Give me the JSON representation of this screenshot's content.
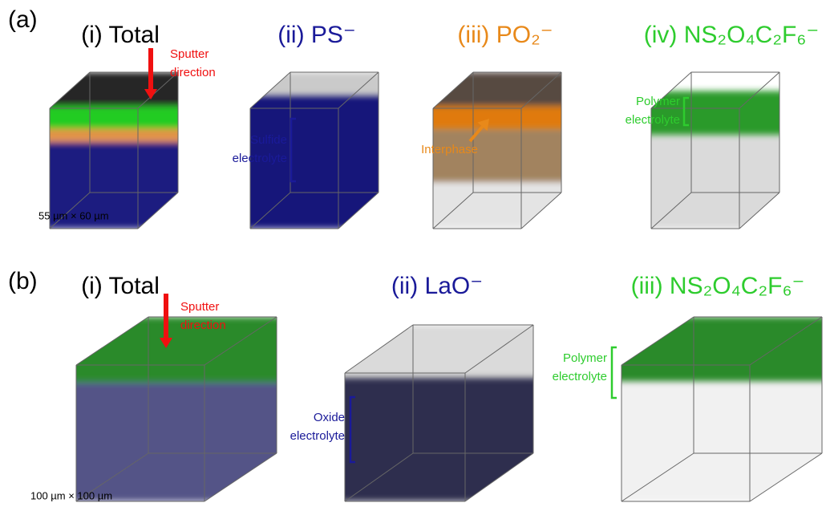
{
  "panels": [
    {
      "label": "(a)",
      "scale_label": "55 µm × 60 µm",
      "columns": [
        {
          "title": "(i) Total",
          "annotation": [
            "Sputter",
            "direction"
          ]
        },
        {
          "title": "(ii) PS⁻",
          "annotation": [
            "Sulfide",
            "electrolyte"
          ]
        },
        {
          "title": "(iii) PO₂⁻",
          "annotation": [
            "Interphase"
          ]
        },
        {
          "title": "(iv) NS₂O₄C₂F₆⁻",
          "annotation": [
            "Polymer",
            "electrolyte"
          ]
        }
      ]
    },
    {
      "label": "(b)",
      "scale_label": "100 µm × 100 µm",
      "columns": [
        {
          "title": "(i) Total",
          "annotation": [
            "Sputter",
            "direction"
          ]
        },
        {
          "title": "(ii) LaO⁻",
          "annotation": [
            "Oxide",
            "electrolyte"
          ]
        },
        {
          "title": "(iii) NS₂O₄C₂F₆⁻",
          "annotation": [
            "Polymer",
            "electrolyte"
          ]
        }
      ]
    }
  ]
}
